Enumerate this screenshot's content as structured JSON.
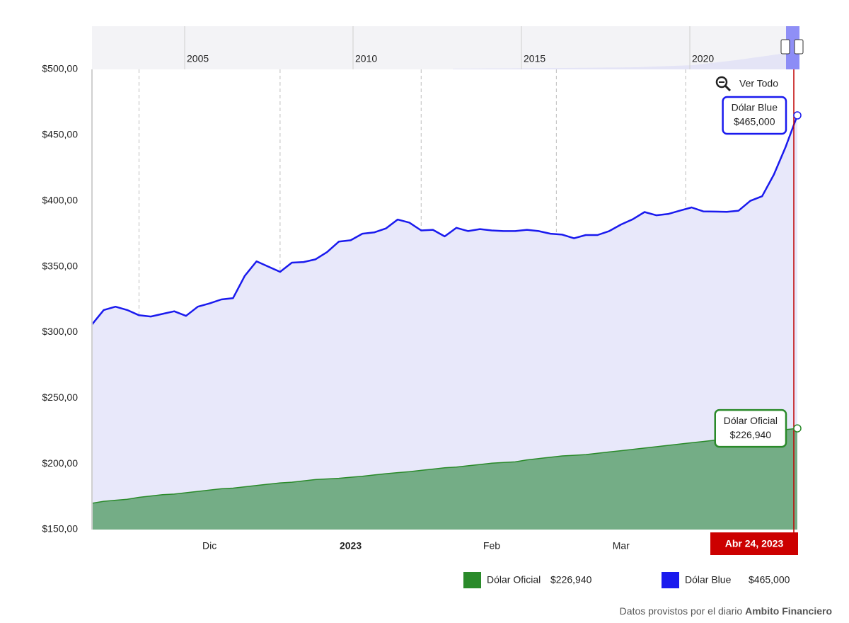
{
  "chart_data": {
    "type": "area",
    "categories": [
      null,
      null,
      null,
      null,
      null,
      null,
      null,
      null,
      null,
      null,
      "Dic",
      null,
      null,
      null,
      null,
      null,
      null,
      null,
      null,
      null,
      null,
      null,
      "2023",
      null,
      null,
      null,
      null,
      null,
      null,
      null,
      null,
      null,
      null,
      null,
      "Feb",
      null,
      null,
      null,
      null,
      null,
      null,
      null,
      null,
      null,
      null,
      "Mar",
      null,
      null,
      null,
      null,
      null,
      null,
      null,
      null,
      null,
      null,
      null,
      null,
      null,
      null,
      "Abr 24, 2023"
    ],
    "series": [
      {
        "name": "Dólar Oficial",
        "color": "#2a8a2a",
        "fill": "#74ad86",
        "current_label": "$226,940",
        "values": [
          170,
          171.5,
          172.3,
          173,
          174.5,
          175.5,
          176.5,
          177,
          178,
          179,
          180,
          181,
          181.5,
          182.5,
          183.5,
          184.5,
          185.5,
          186,
          187,
          188,
          188.5,
          189,
          189.8,
          190.5,
          191.5,
          192.5,
          193.3,
          194,
          195,
          196,
          197,
          197.5,
          198.5,
          199.5,
          200.5,
          201,
          201.5,
          203,
          204,
          205,
          206,
          206.5,
          207,
          208,
          209,
          210,
          211,
          212,
          213,
          214,
          215,
          216,
          217,
          218,
          219.5,
          220.5,
          222,
          223.5,
          225,
          226,
          226.94
        ]
      },
      {
        "name": "Dólar Blue",
        "color": "#1a1aee",
        "fill": "#e8e8fa",
        "current_label": "$465,000",
        "values": [
          306,
          317,
          319.5,
          317,
          313,
          312,
          314,
          316,
          312.5,
          319.5,
          322,
          325,
          326,
          343,
          354,
          350,
          346,
          353,
          353.5,
          355.5,
          361,
          369,
          370,
          375,
          376,
          379,
          385.8,
          383.5,
          377.5,
          378,
          373,
          379.5,
          377,
          378.5,
          377.5,
          377,
          377,
          378,
          377,
          375,
          374.3,
          371.5,
          374,
          374,
          377,
          382,
          386,
          391.5,
          389,
          390,
          392.5,
          395,
          392,
          391.8,
          391.6,
          392.5,
          400,
          403.5,
          420,
          441,
          465
        ]
      }
    ],
    "ylim": [
      150,
      500
    ],
    "yticks": [
      {
        "value": 150,
        "label": "$150,00"
      },
      {
        "value": 200,
        "label": "$200,00"
      },
      {
        "value": 250,
        "label": "$250,00"
      },
      {
        "value": 300,
        "label": "$300,00"
      },
      {
        "value": 350,
        "label": "$350,00"
      },
      {
        "value": 400,
        "label": "$400,00"
      },
      {
        "value": 450,
        "label": "$450,00"
      },
      {
        "value": 500,
        "label": "$500,00"
      }
    ],
    "xgrid": true,
    "navigator": {
      "labels": [
        "2005",
        "2010",
        "2015",
        "2020"
      ]
    },
    "zoom_button": "Ver Todo",
    "source": {
      "text": "Datos provistos por el diario",
      "bold": "Ambito Financiero"
    }
  }
}
